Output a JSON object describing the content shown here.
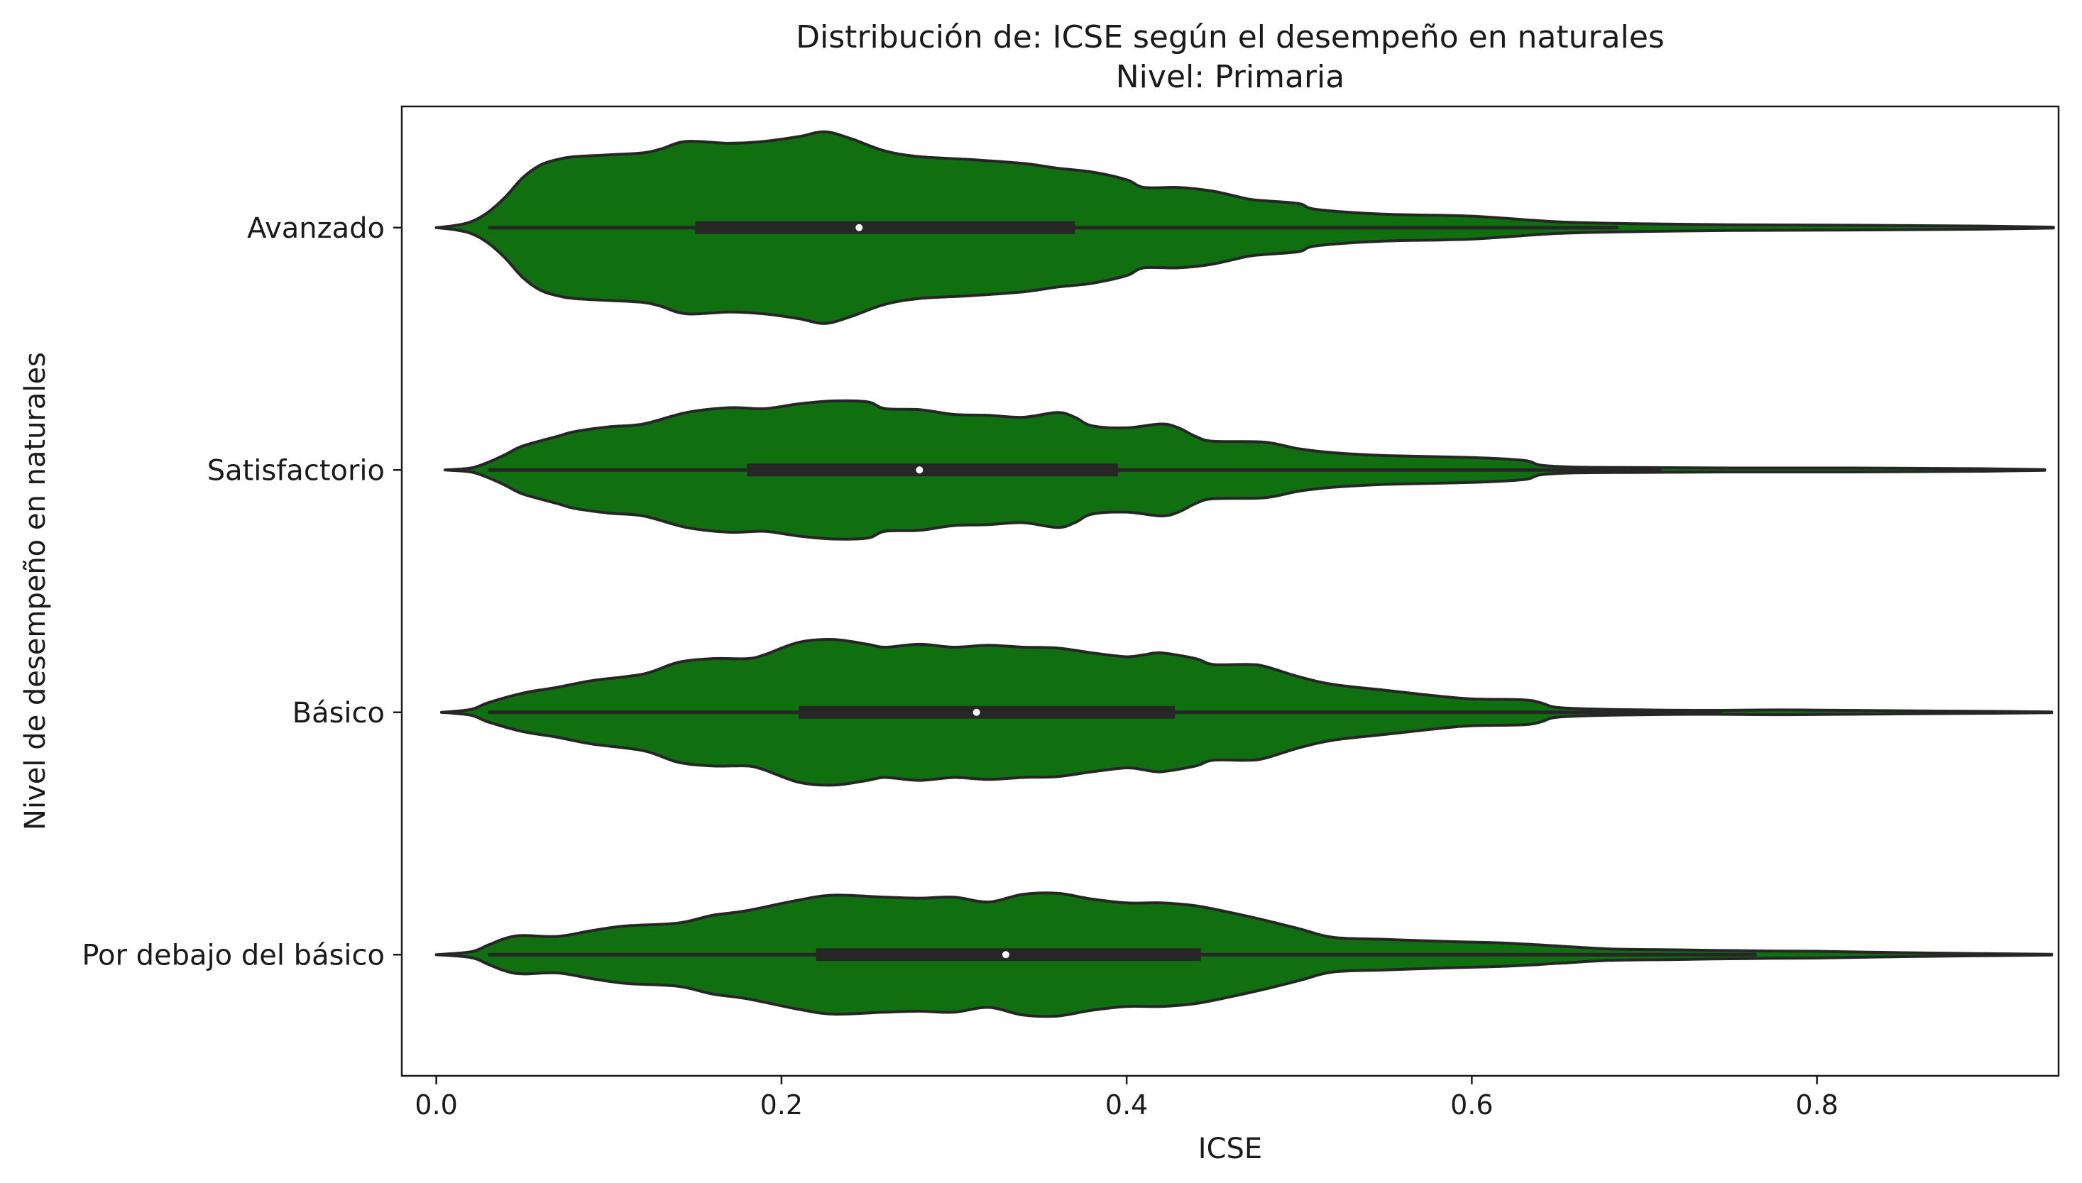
{
  "chart_data": {
    "type": "violin",
    "orientation": "horizontal",
    "title": "Distribución de: ICSE según el desempeño en naturales",
    "subtitle": "Nivel: Primaria",
    "xlabel": "ICSE",
    "ylabel": "Nivel de desempeño en naturales",
    "xlim": [
      -0.02,
      0.94
    ],
    "x_ticks": [
      0.0,
      0.2,
      0.4,
      0.6,
      0.8
    ],
    "x_tick_labels": [
      "0.0",
      "0.2",
      "0.4",
      "0.6",
      "0.8"
    ],
    "grid": false,
    "fill_color": "#107010",
    "edge_color": "#262626",
    "categories": [
      "Avanzado",
      "Satisfactorio",
      "Básico",
      "Por debajo del básico"
    ],
    "series": [
      {
        "category": "Avanzado",
        "median": 0.245,
        "q1": 0.15,
        "q3": 0.37,
        "whisker_low": 0.03,
        "whisker_high": 0.685,
        "density": [
          [
            0.0,
            0.0
          ],
          [
            0.01,
            0.02
          ],
          [
            0.02,
            0.06
          ],
          [
            0.03,
            0.16
          ],
          [
            0.04,
            0.32
          ],
          [
            0.05,
            0.52
          ],
          [
            0.06,
            0.65
          ],
          [
            0.07,
            0.71
          ],
          [
            0.08,
            0.74
          ],
          [
            0.1,
            0.76
          ],
          [
            0.12,
            0.78
          ],
          [
            0.13,
            0.82
          ],
          [
            0.145,
            0.9
          ],
          [
            0.17,
            0.88
          ],
          [
            0.19,
            0.9
          ],
          [
            0.21,
            0.95
          ],
          [
            0.225,
            1.0
          ],
          [
            0.24,
            0.93
          ],
          [
            0.26,
            0.8
          ],
          [
            0.28,
            0.74
          ],
          [
            0.31,
            0.71
          ],
          [
            0.34,
            0.67
          ],
          [
            0.36,
            0.62
          ],
          [
            0.38,
            0.58
          ],
          [
            0.4,
            0.5
          ],
          [
            0.41,
            0.42
          ],
          [
            0.43,
            0.42
          ],
          [
            0.45,
            0.38
          ],
          [
            0.47,
            0.3
          ],
          [
            0.48,
            0.28
          ],
          [
            0.5,
            0.25
          ],
          [
            0.51,
            0.19
          ],
          [
            0.55,
            0.14
          ],
          [
            0.6,
            0.12
          ],
          [
            0.65,
            0.06
          ],
          [
            0.7,
            0.04
          ],
          [
            0.75,
            0.03
          ],
          [
            0.82,
            0.025
          ],
          [
            0.9,
            0.015
          ],
          [
            0.937,
            0.005
          ]
        ]
      },
      {
        "category": "Satisfactorio",
        "median": 0.28,
        "q1": 0.18,
        "q3": 0.395,
        "whisker_low": 0.03,
        "whisker_high": 0.71,
        "density": [
          [
            0.005,
            0.0
          ],
          [
            0.02,
            0.02
          ],
          [
            0.03,
            0.08
          ],
          [
            0.04,
            0.16
          ],
          [
            0.05,
            0.25
          ],
          [
            0.07,
            0.35
          ],
          [
            0.08,
            0.4
          ],
          [
            0.1,
            0.45
          ],
          [
            0.12,
            0.48
          ],
          [
            0.145,
            0.6
          ],
          [
            0.17,
            0.65
          ],
          [
            0.19,
            0.64
          ],
          [
            0.21,
            0.69
          ],
          [
            0.23,
            0.72
          ],
          [
            0.25,
            0.71
          ],
          [
            0.26,
            0.64
          ],
          [
            0.28,
            0.63
          ],
          [
            0.3,
            0.58
          ],
          [
            0.32,
            0.57
          ],
          [
            0.34,
            0.55
          ],
          [
            0.36,
            0.6
          ],
          [
            0.37,
            0.55
          ],
          [
            0.38,
            0.46
          ],
          [
            0.4,
            0.44
          ],
          [
            0.42,
            0.48
          ],
          [
            0.43,
            0.44
          ],
          [
            0.44,
            0.35
          ],
          [
            0.45,
            0.3
          ],
          [
            0.48,
            0.29
          ],
          [
            0.5,
            0.22
          ],
          [
            0.52,
            0.18
          ],
          [
            0.55,
            0.15
          ],
          [
            0.6,
            0.13
          ],
          [
            0.63,
            0.1
          ],
          [
            0.64,
            0.05
          ],
          [
            0.66,
            0.03
          ],
          [
            0.7,
            0.025
          ],
          [
            0.75,
            0.02
          ],
          [
            0.82,
            0.02
          ],
          [
            0.9,
            0.012
          ],
          [
            0.932,
            0.004
          ]
        ]
      },
      {
        "category": "Básico",
        "median": 0.313,
        "q1": 0.21,
        "q3": 0.428,
        "whisker_low": 0.03,
        "whisker_high": 0.745,
        "density": [
          [
            0.003,
            0.0
          ],
          [
            0.02,
            0.03
          ],
          [
            0.03,
            0.1
          ],
          [
            0.05,
            0.2
          ],
          [
            0.07,
            0.26
          ],
          [
            0.09,
            0.33
          ],
          [
            0.12,
            0.4
          ],
          [
            0.14,
            0.52
          ],
          [
            0.16,
            0.56
          ],
          [
            0.18,
            0.56
          ],
          [
            0.19,
            0.6
          ],
          [
            0.21,
            0.73
          ],
          [
            0.23,
            0.76
          ],
          [
            0.25,
            0.71
          ],
          [
            0.26,
            0.68
          ],
          [
            0.28,
            0.71
          ],
          [
            0.3,
            0.68
          ],
          [
            0.32,
            0.7
          ],
          [
            0.34,
            0.68
          ],
          [
            0.36,
            0.67
          ],
          [
            0.38,
            0.62
          ],
          [
            0.4,
            0.58
          ],
          [
            0.41,
            0.6
          ],
          [
            0.42,
            0.62
          ],
          [
            0.44,
            0.56
          ],
          [
            0.45,
            0.5
          ],
          [
            0.47,
            0.5
          ],
          [
            0.48,
            0.48
          ],
          [
            0.5,
            0.37
          ],
          [
            0.52,
            0.29
          ],
          [
            0.55,
            0.23
          ],
          [
            0.58,
            0.17
          ],
          [
            0.6,
            0.14
          ],
          [
            0.63,
            0.13
          ],
          [
            0.64,
            0.1
          ],
          [
            0.65,
            0.05
          ],
          [
            0.68,
            0.03
          ],
          [
            0.73,
            0.02
          ],
          [
            0.78,
            0.025
          ],
          [
            0.83,
            0.018
          ],
          [
            0.9,
            0.01
          ],
          [
            0.936,
            0.004
          ]
        ]
      },
      {
        "category": "Por debajo del básico",
        "median": 0.33,
        "q1": 0.22,
        "q3": 0.443,
        "whisker_low": 0.03,
        "whisker_high": 0.765,
        "density": [
          [
            0.0,
            0.0
          ],
          [
            0.02,
            0.03
          ],
          [
            0.03,
            0.1
          ],
          [
            0.04,
            0.17
          ],
          [
            0.05,
            0.2
          ],
          [
            0.07,
            0.19
          ],
          [
            0.09,
            0.25
          ],
          [
            0.11,
            0.3
          ],
          [
            0.14,
            0.33
          ],
          [
            0.16,
            0.41
          ],
          [
            0.18,
            0.46
          ],
          [
            0.21,
            0.57
          ],
          [
            0.23,
            0.62
          ],
          [
            0.26,
            0.6
          ],
          [
            0.28,
            0.59
          ],
          [
            0.3,
            0.6
          ],
          [
            0.32,
            0.55
          ],
          [
            0.34,
            0.63
          ],
          [
            0.36,
            0.64
          ],
          [
            0.38,
            0.58
          ],
          [
            0.4,
            0.54
          ],
          [
            0.42,
            0.54
          ],
          [
            0.44,
            0.51
          ],
          [
            0.46,
            0.44
          ],
          [
            0.48,
            0.36
          ],
          [
            0.5,
            0.27
          ],
          [
            0.52,
            0.18
          ],
          [
            0.55,
            0.16
          ],
          [
            0.58,
            0.14
          ],
          [
            0.62,
            0.12
          ],
          [
            0.65,
            0.09
          ],
          [
            0.68,
            0.06
          ],
          [
            0.72,
            0.05
          ],
          [
            0.76,
            0.04
          ],
          [
            0.8,
            0.035
          ],
          [
            0.85,
            0.02
          ],
          [
            0.9,
            0.01
          ],
          [
            0.936,
            0.004
          ]
        ]
      }
    ]
  }
}
